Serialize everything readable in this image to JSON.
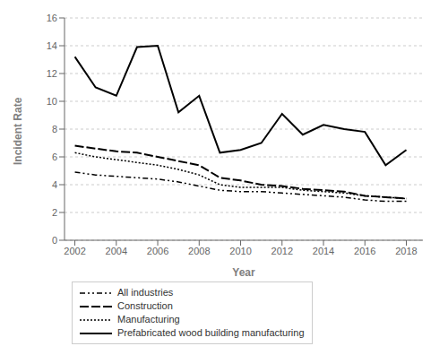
{
  "chart_data": {
    "type": "line",
    "x": [
      2002,
      2003,
      2004,
      2005,
      2006,
      2007,
      2008,
      2009,
      2010,
      2011,
      2012,
      2013,
      2014,
      2015,
      2016,
      2017,
      2018
    ],
    "series": [
      {
        "name": "All industries",
        "color": "#000000",
        "line_style": "dashdot",
        "values": [
          4.9,
          4.7,
          4.6,
          4.5,
          4.4,
          4.2,
          3.9,
          3.6,
          3.5,
          3.5,
          3.4,
          3.3,
          3.2,
          3.1,
          2.9,
          2.8,
          2.8
        ]
      },
      {
        "name": "Construction",
        "color": "#000000",
        "line_style": "dashed",
        "values": [
          6.8,
          6.6,
          6.4,
          6.3,
          6.0,
          5.7,
          5.4,
          4.5,
          4.3,
          4.0,
          3.9,
          3.7,
          3.6,
          3.5,
          3.2,
          3.1,
          3.0
        ]
      },
      {
        "name": "Manufacturing",
        "color": "#000000",
        "line_style": "dotted",
        "values": [
          6.3,
          6.0,
          5.8,
          5.6,
          5.4,
          5.1,
          4.7,
          4.0,
          3.8,
          3.8,
          3.8,
          3.6,
          3.5,
          3.4,
          3.2,
          3.1,
          3.0
        ]
      },
      {
        "name": "Prefabricated wood building manufacturing",
        "color": "#000000",
        "line_style": "solid",
        "values": [
          13.2,
          11.0,
          10.4,
          13.9,
          14.0,
          9.2,
          10.4,
          6.3,
          6.5,
          7.0,
          9.1,
          7.6,
          8.3,
          8.0,
          7.8,
          5.4,
          6.5
        ]
      }
    ],
    "x_label": "Year",
    "y_label": "Incident Rate",
    "xlim": [
      2001.5,
      2018.8
    ],
    "xticks": [
      2002,
      2004,
      2006,
      2008,
      2010,
      2012,
      2014,
      2016,
      2018
    ],
    "ylim": [
      0,
      16
    ],
    "yticks": [
      0,
      2,
      4,
      6,
      8,
      10,
      12,
      14,
      16
    ],
    "grid": true,
    "legend": "bottom"
  }
}
